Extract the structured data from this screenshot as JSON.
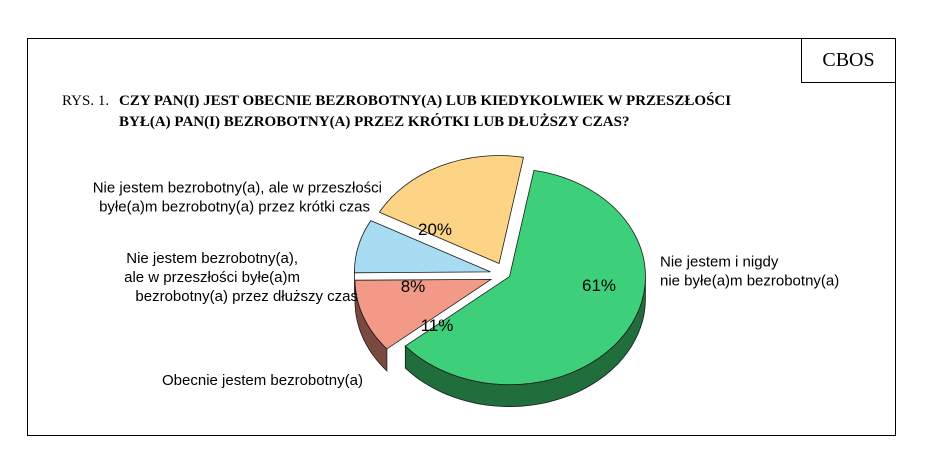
{
  "header": {
    "brand": "CBOS",
    "figure_label": "RYS. 1.",
    "title_line1": "CZY PAN(I) JEST OBECNIE BEZROBOTNY(A) LUB KIEDYKOLWIEK W PRZESZŁOŚCI",
    "title_line2": "BYŁ(A) PAN(I) BEZROBOTNY(A) PRZEZ KRÓTKI LUB DŁUŻSZY CZAS?"
  },
  "chart_data": {
    "type": "pie",
    "title": "CZY PAN(I) JEST OBECNIE BEZROBOTNY(A) LUB KIEDYKOLWIEK W PRZESZŁOŚCI BYŁ(A) PAN(I) BEZROBOTNY(A) PRZEZ KRÓTKI LUB DŁUŻSZY CZAS?",
    "style": "3d-exploded",
    "slices": [
      {
        "label_lines": [
          "Nie jestem i nigdy",
          "nie byłe(a)m bezrobotny(a)"
        ],
        "value": 61,
        "value_label": "61%",
        "color": "#3ecf7b",
        "side_color": "#1f6e3c"
      },
      {
        "label_lines": [
          "Obecnie jestem bezrobotny(a)"
        ],
        "value": 11,
        "value_label": "11%",
        "color": "#f29a87",
        "side_color": "#7a4a40"
      },
      {
        "label_lines": [
          "Nie jestem bezrobotny(a),",
          "ale w przeszłości byłe(a)m",
          "bezrobotny(a) przez dłuższy czas"
        ],
        "value": 8,
        "value_label": "8%",
        "color": "#a8dcf3",
        "side_color": "#4a6f80"
      },
      {
        "label_lines": [
          "Nie jestem bezrobotny(a), ale w przeszłości",
          "byłe(a)m bezrobotny(a) przez krótki czas"
        ],
        "value": 20,
        "value_label": "20%",
        "color": "#fdd486",
        "side_color": "#8a7040"
      }
    ]
  }
}
